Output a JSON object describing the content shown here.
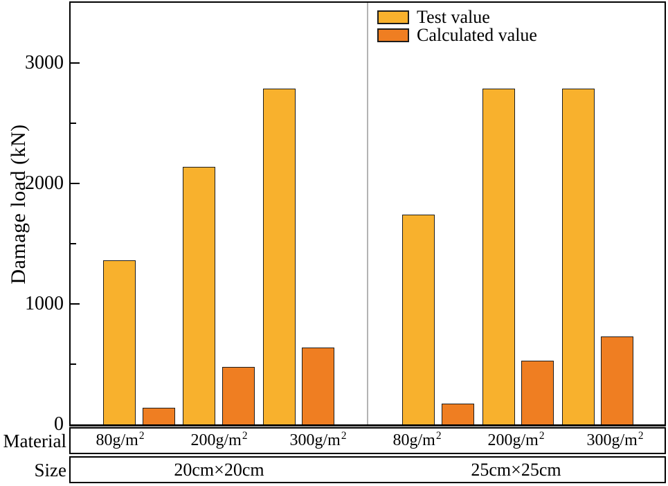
{
  "chart_data": {
    "type": "bar",
    "title": "",
    "ylabel": "Damage load (kN)",
    "ylim": [
      0,
      3500
    ],
    "y_major_ticks": [
      0,
      1000,
      2000,
      3000
    ],
    "y_minor_ticks": [
      500,
      1500,
      2500
    ],
    "grid": false,
    "legend_position": "top-center-inside",
    "categories": [
      "80g/m²",
      "200g/m²",
      "300g/m²"
    ],
    "groups": [
      {
        "size_label": "20cm×20cm",
        "materials": [
          "80g/m²",
          "200g/m²",
          "300g/m²"
        ],
        "series": [
          {
            "name": "Test value",
            "values": [
              1360,
              2140,
              2790
            ]
          },
          {
            "name": "Calculated value",
            "values": [
              140,
              475,
              640
            ]
          }
        ]
      },
      {
        "size_label": "25cm×25cm",
        "materials": [
          "80g/m²",
          "200g/m²",
          "300g/m²"
        ],
        "series": [
          {
            "name": "Test value",
            "values": [
              1740,
              2790,
              2790
            ]
          },
          {
            "name": "Calculated value",
            "values": [
              175,
              530,
              730
            ]
          }
        ]
      }
    ],
    "series_styles": [
      {
        "name": "Test value",
        "fill": "#F8B12D",
        "stroke": "#1c1c1c"
      },
      {
        "name": "Calculated value",
        "fill": "#EF7E22",
        "stroke": "#1c1c1c"
      }
    ],
    "axis_color": "#000000",
    "divider_color": "#b3b3b3"
  },
  "legend": {
    "items": [
      {
        "label": "Test value",
        "color": "#F8B12D"
      },
      {
        "label": "Calculated value",
        "color": "#EF7E22"
      }
    ]
  },
  "labels": {
    "material_header": "Material",
    "size_header": "Size"
  }
}
